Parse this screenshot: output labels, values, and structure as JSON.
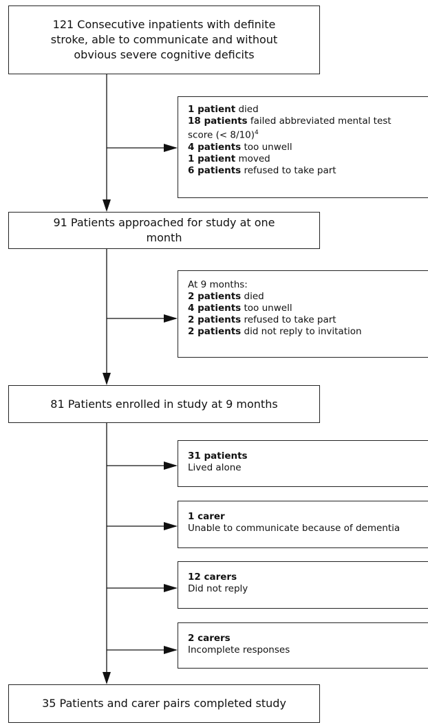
{
  "boxes": [
    {
      "label": "121 Consecutive inpatients with definite stroke, able to communicate and without obvious severe cognitive deficits"
    },
    {
      "label": "91 Patients approached for study at one month"
    },
    {
      "label": "81 Patients enrolled in study at 9 months"
    },
    {
      "label": "35 Patients and carer pairs completed study"
    }
  ],
  "exclusions": [
    {
      "items": [
        {
          "bold": "1 patient",
          "text": "died"
        },
        {
          "bold": "18 patients",
          "text": "failed abbreviated mental test score (< 8/10)",
          "sup": "4"
        },
        {
          "bold": "4 patients",
          "text": "too unwell"
        },
        {
          "bold": "1 patient",
          "text": "moved"
        },
        {
          "bold": "6 patients",
          "text": "refused to take part"
        }
      ]
    },
    {
      "heading": "At 9 months:",
      "items": [
        {
          "bold": "2 patients",
          "text": "died"
        },
        {
          "bold": "4 patients",
          "text": "too unwell"
        },
        {
          "bold": "2 patients",
          "text": "refused to take part"
        },
        {
          "bold": "2 patients",
          "text": "did not reply to invitation"
        }
      ]
    },
    {
      "title": "31 patients",
      "detail": "Lived alone"
    },
    {
      "title": "1 carer",
      "detail": "Unable to communicate because of dementia"
    },
    {
      "title": "12 carers",
      "detail": "Did not reply"
    },
    {
      "title": "2 carers",
      "detail": "Incomplete responses"
    }
  ]
}
